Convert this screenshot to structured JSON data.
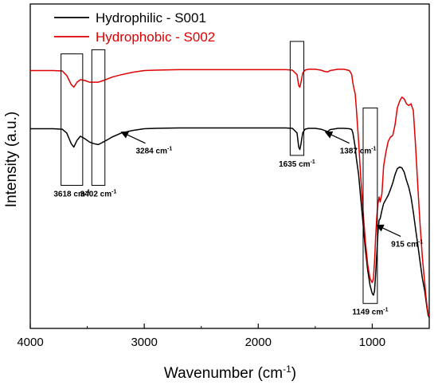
{
  "chart_data": {
    "type": "line",
    "title": "",
    "xlabel": "Wavenumber (cm",
    "xlabel_sup": "-1",
    "xlabel_tail": ")",
    "ylabel": "Intensity (a.u.)",
    "xlim": [
      4000,
      500
    ],
    "x_reversed": true,
    "y_ticks_shown": false,
    "x_ticks": [
      4000,
      3000,
      2000,
      1000
    ],
    "x_tick_labels": [
      "4000",
      "3000",
      "2000",
      "1000"
    ],
    "grid": false,
    "legend_position": "top-left",
    "series": [
      {
        "name": "Hydrophilic - S001",
        "color": "#000000",
        "x": [
          4000,
          3800,
          3720,
          3680,
          3640,
          3618,
          3590,
          3560,
          3520,
          3480,
          3440,
          3402,
          3360,
          3320,
          3284,
          3200,
          3100,
          3000,
          2900,
          2700,
          2500,
          2300,
          2100,
          1900,
          1760,
          1700,
          1660,
          1645,
          1635,
          1625,
          1610,
          1590,
          1560,
          1500,
          1450,
          1420,
          1400,
          1387,
          1370,
          1300,
          1250,
          1200,
          1180,
          1170,
          1160,
          1150,
          1140,
          1120,
          1100,
          1080,
          1060,
          1040,
          1020,
          1000,
          990,
          980,
          970,
          960,
          950,
          940,
          930,
          915,
          900,
          880,
          860,
          840,
          820,
          800,
          780,
          760,
          740,
          720,
          700,
          680,
          660,
          640,
          620,
          600,
          580,
          560,
          540,
          530,
          520,
          510,
          500
        ],
        "y": [
          2.0,
          2.0,
          2.05,
          2.5,
          3.8,
          4.2,
          3.4,
          2.9,
          3.2,
          3.6,
          3.8,
          3.9,
          3.6,
          3.3,
          3.0,
          2.5,
          2.2,
          2.0,
          1.95,
          1.9,
          1.9,
          1.9,
          1.9,
          1.9,
          1.9,
          1.95,
          2.5,
          4.2,
          4.5,
          3.8,
          2.5,
          2.05,
          1.95,
          1.95,
          2.05,
          2.2,
          2.3,
          2.3,
          2.1,
          1.95,
          1.95,
          2.0,
          2.1,
          2.5,
          3.3,
          4.2,
          5.5,
          7.5,
          10.5,
          13.5,
          16.5,
          19.0,
          20.8,
          21.8,
          22.0,
          21.5,
          19.5,
          17.0,
          14.5,
          13.0,
          12.8,
          11.8,
          11.0,
          10.5,
          10.0,
          9.3,
          8.5,
          7.5,
          6.8,
          6.6,
          6.7,
          7.2,
          8.2,
          9.0,
          10.2,
          12.0,
          14.0,
          16.0,
          18.0,
          20.0,
          21.5,
          22.5,
          23.5,
          24.4,
          24.7
        ]
      },
      {
        "name": "Hydrophobic - S002",
        "color": "#e00000",
        "x": [
          4000,
          3800,
          3720,
          3680,
          3640,
          3618,
          3590,
          3560,
          3520,
          3480,
          3440,
          3402,
          3360,
          3320,
          3284,
          3200,
          3100,
          3000,
          2900,
          2700,
          2500,
          2300,
          2100,
          1900,
          1760,
          1700,
          1660,
          1645,
          1635,
          1625,
          1610,
          1590,
          1560,
          1500,
          1450,
          1420,
          1400,
          1387,
          1370,
          1300,
          1250,
          1200,
          1180,
          1170,
          1160,
          1150,
          1140,
          1120,
          1100,
          1080,
          1060,
          1040,
          1020,
          1000,
          990,
          980,
          970,
          960,
          950,
          940,
          930,
          915,
          900,
          880,
          860,
          840,
          820,
          800,
          780,
          760,
          740,
          720,
          700,
          680,
          660,
          640,
          620,
          600,
          580,
          560,
          540,
          530,
          520,
          510,
          500
        ],
        "y": [
          -5.0,
          -5.0,
          -4.95,
          -4.4,
          -3.3,
          -3.0,
          -3.6,
          -3.9,
          -3.8,
          -3.6,
          -3.6,
          -3.6,
          -3.8,
          -4.0,
          -4.2,
          -4.5,
          -4.8,
          -5.0,
          -5.05,
          -5.1,
          -5.1,
          -5.1,
          -5.1,
          -5.1,
          -5.1,
          -5.05,
          -4.5,
          -3.2,
          -3.0,
          -3.6,
          -4.7,
          -5.05,
          -5.15,
          -5.15,
          -5.05,
          -4.9,
          -4.85,
          -4.85,
          -5.0,
          -5.15,
          -5.15,
          -5.0,
          -4.5,
          -3.5,
          -2.8,
          -2.2,
          -0.5,
          3.5,
          8.0,
          12.0,
          15.5,
          18.3,
          20.0,
          20.5,
          20.0,
          18.0,
          15.0,
          12.5,
          11.0,
          10.2,
          10.8,
          9.8,
          6.5,
          4.8,
          3.5,
          3.0,
          2.8,
          1.5,
          -0.5,
          -1.3,
          -1.8,
          -1.6,
          -1.0,
          -0.8,
          -1.0,
          -0.2,
          4.0,
          9.0,
          13.5,
          17.5,
          20.5,
          22.0,
          23.2,
          24.2,
          24.5
        ]
      }
    ],
    "annotations": [
      {
        "label": "3618 cm",
        "sup": "-1",
        "box_x": [
          3730,
          3540
        ],
        "box_y": [
          -7.0,
          8.8
        ]
      },
      {
        "label": "3402 cm",
        "sup": "-1",
        "box_x": [
          3460,
          3345
        ],
        "box_y": [
          -7.5,
          8.8
        ]
      },
      {
        "label": "3284 cm",
        "sup": "-1",
        "arrow_to": [
          3200,
          2.4
        ]
      },
      {
        "label": "1635 cm",
        "sup": "-1",
        "box_x": [
          1720,
          1600
        ],
        "box_y": [
          -8.5,
          5.2
        ]
      },
      {
        "label": "1387 cm",
        "sup": "-1",
        "arrow_to": [
          1410,
          2.4
        ]
      },
      {
        "label": "1149 cm",
        "sup": "-1",
        "box_x": [
          1080,
          955
        ],
        "box_y": [
          -0.5,
          23.0
        ]
      },
      {
        "label": "915 cm",
        "sup": "-1",
        "arrow_to": [
          960,
          13.6
        ]
      }
    ]
  }
}
